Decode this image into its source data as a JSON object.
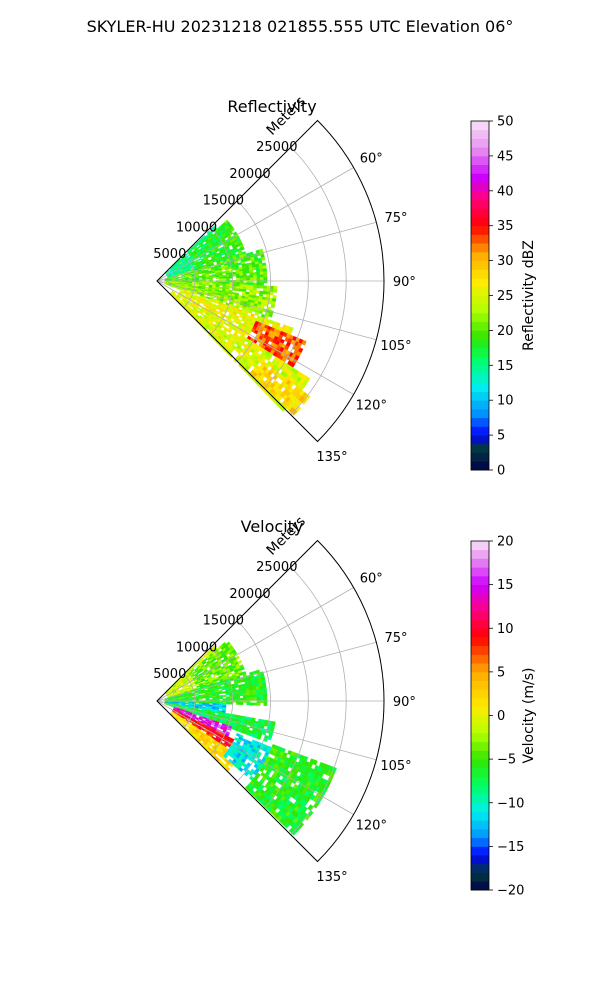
{
  "figure": {
    "suptitle": "SKYLER-HU  20231218  021855.555 UTC Elevation 06°"
  },
  "chart_data": [
    {
      "type": "heatmap",
      "projection": "polar-sector",
      "title": "Reflectivity",
      "range_axis_label": "Meters",
      "range_ticks": [
        "5000",
        "10000",
        "15000",
        "20000",
        "25000"
      ],
      "range_tick_values": [
        5000,
        10000,
        15000,
        20000,
        25000
      ],
      "range_max": 30000,
      "azimuth_ticks": [
        "60°",
        "75°",
        "90°",
        "105°",
        "120°",
        "135°"
      ],
      "azimuth_tick_values": [
        60,
        75,
        90,
        105,
        120,
        135
      ],
      "azimuth_range": [
        45,
        135
      ],
      "grid": true,
      "colorbar": {
        "label": "Reflectivity dBZ",
        "min": 0,
        "max": 50,
        "ticks": [
          "0",
          "5",
          "10",
          "15",
          "20",
          "25",
          "30",
          "35",
          "40",
          "45",
          "50"
        ],
        "tick_values": [
          0,
          5,
          10,
          15,
          20,
          25,
          30,
          35,
          40,
          45,
          50
        ],
        "stops": [
          {
            "value": 0,
            "color": "#00004c"
          },
          {
            "value": 3,
            "color": "#003a3a"
          },
          {
            "value": 5,
            "color": "#0000ff"
          },
          {
            "value": 8,
            "color": "#0090ff"
          },
          {
            "value": 12,
            "color": "#00f0f0"
          },
          {
            "value": 16,
            "color": "#00ff60"
          },
          {
            "value": 19,
            "color": "#33e600"
          },
          {
            "value": 23,
            "color": "#b4ff00"
          },
          {
            "value": 27,
            "color": "#ffeb00"
          },
          {
            "value": 31,
            "color": "#ffaa00"
          },
          {
            "value": 35,
            "color": "#ff0000"
          },
          {
            "value": 39,
            "color": "#ff0080"
          },
          {
            "value": 42,
            "color": "#cc00ff"
          },
          {
            "value": 46,
            "color": "#e890f0"
          },
          {
            "value": 50,
            "color": "#f6e4f8"
          }
        ]
      },
      "echo_regions": [
        {
          "az": [
            46,
            72
          ],
          "range": [
            1500,
            10500
          ],
          "value": 15
        },
        {
          "az": [
            48,
            80
          ],
          "range": [
            5500,
            12000
          ],
          "value": 18
        },
        {
          "az": [
            72,
            92
          ],
          "range": [
            1000,
            14500
          ],
          "value": 20
        },
        {
          "az": [
            92,
            110
          ],
          "range": [
            1000,
            15500
          ],
          "value": 22
        },
        {
          "az": [
            108,
            126
          ],
          "range": [
            3000,
            19000
          ],
          "value": 26
        },
        {
          "az": [
            112,
            122
          ],
          "range": [
            14000,
            21000
          ],
          "value": 33
        },
        {
          "az": [
            122,
            135
          ],
          "range": [
            2000,
            24000
          ],
          "value": 25
        },
        {
          "az": [
            126,
            134
          ],
          "range": [
            17000,
            25000
          ],
          "value": 28
        }
      ]
    },
    {
      "type": "heatmap",
      "projection": "polar-sector",
      "title": "Velocity",
      "range_axis_label": "Meters",
      "range_ticks": [
        "5000",
        "10000",
        "15000",
        "20000",
        "25000"
      ],
      "range_tick_values": [
        5000,
        10000,
        15000,
        20000,
        25000
      ],
      "range_max": 30000,
      "azimuth_ticks": [
        "60°",
        "75°",
        "90°",
        "105°",
        "120°",
        "135°"
      ],
      "azimuth_tick_values": [
        60,
        75,
        90,
        105,
        120,
        135
      ],
      "azimuth_range": [
        45,
        135
      ],
      "grid": true,
      "colorbar": {
        "label": "Velocity (m/s)",
        "min": -20,
        "max": 20,
        "ticks": [
          "−20",
          "−15",
          "−10",
          "−5",
          "0",
          "5",
          "10",
          "15",
          "20"
        ],
        "tick_values": [
          -20,
          -15,
          -10,
          -5,
          0,
          5,
          10,
          15,
          20
        ],
        "stops": [
          {
            "value": -20,
            "color": "#00004c"
          },
          {
            "value": -18,
            "color": "#003a3a"
          },
          {
            "value": -16,
            "color": "#0000ff"
          },
          {
            "value": -14,
            "color": "#0090ff"
          },
          {
            "value": -11,
            "color": "#00f0f0"
          },
          {
            "value": -8,
            "color": "#00ff60"
          },
          {
            "value": -5,
            "color": "#33e600"
          },
          {
            "value": -2,
            "color": "#b4ff00"
          },
          {
            "value": 1,
            "color": "#ffeb00"
          },
          {
            "value": 5,
            "color": "#ffaa00"
          },
          {
            "value": 9,
            "color": "#ff0000"
          },
          {
            "value": 12,
            "color": "#ff0080"
          },
          {
            "value": 15,
            "color": "#cc00ff"
          },
          {
            "value": 18,
            "color": "#e890f0"
          },
          {
            "value": 20,
            "color": "#f6e4f8"
          }
        ]
      },
      "echo_regions": [
        {
          "az": [
            46,
            72
          ],
          "range": [
            1500,
            10500
          ],
          "value": -1
        },
        {
          "az": [
            48,
            80
          ],
          "range": [
            5500,
            12000
          ],
          "value": -4
        },
        {
          "az": [
            72,
            92
          ],
          "range": [
            1000,
            14500
          ],
          "value": -6
        },
        {
          "az": [
            92,
            100
          ],
          "range": [
            1000,
            9000
          ],
          "value": -12
        },
        {
          "az": [
            100,
            110
          ],
          "range": [
            1000,
            15500
          ],
          "value": -7
        },
        {
          "az": [
            108,
            116
          ],
          "range": [
            2000,
            10500
          ],
          "value": 15
        },
        {
          "az": [
            116,
            124
          ],
          "range": [
            2000,
            12000
          ],
          "value": 9
        },
        {
          "az": [
            124,
            134
          ],
          "range": [
            2000,
            13000
          ],
          "value": 2
        },
        {
          "az": [
            112,
            130
          ],
          "range": [
            11000,
            18000
          ],
          "value": -11
        },
        {
          "az": [
            110,
            134
          ],
          "range": [
            16000,
            25000
          ],
          "value": -6
        }
      ]
    }
  ]
}
